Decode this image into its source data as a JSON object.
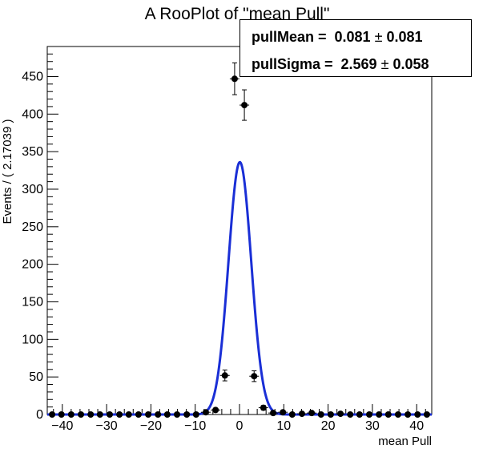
{
  "chart_data": {
    "type": "scatter",
    "title": "A RooPlot of \"mean Pull\"",
    "xlabel": "mean Pull",
    "ylabel": "Events / ( 2.17039 )",
    "xlim": [
      -43.4,
      43.4
    ],
    "ylim": [
      0,
      490
    ],
    "xticks": [
      -40,
      -30,
      -20,
      -10,
      0,
      10,
      20,
      30,
      40
    ],
    "xtick_labels": [
      "−40",
      "−30",
      "−20",
      "−10",
      "0",
      "10",
      "20",
      "30",
      "40"
    ],
    "yticks": [
      0,
      50,
      100,
      150,
      200,
      250,
      300,
      350,
      400,
      450
    ],
    "grid": false,
    "bin_width": 2.17039,
    "series": [
      {
        "style": "points-with-errors",
        "color": "#000000",
        "x": [
          -42.3,
          -40.2,
          -38.0,
          -35.8,
          -33.6,
          -31.5,
          -29.3,
          -27.1,
          -25.0,
          -22.8,
          -20.6,
          -18.4,
          -16.3,
          -14.1,
          -11.9,
          -9.8,
          -7.6,
          -5.4,
          -3.3,
          -1.1,
          1.1,
          3.3,
          5.4,
          7.6,
          9.8,
          11.9,
          14.1,
          16.3,
          18.4,
          20.6,
          22.8,
          25.0,
          27.1,
          29.3,
          31.5,
          33.6,
          35.8,
          38.0,
          40.2,
          42.3
        ],
        "y": [
          0,
          0,
          0,
          0,
          0,
          0,
          0,
          0,
          0,
          0,
          0,
          0,
          0,
          0,
          0,
          0,
          3,
          6,
          52,
          447,
          412,
          51,
          9,
          2,
          3,
          0,
          1,
          2,
          0,
          0,
          1,
          0,
          0,
          0,
          0,
          0,
          0,
          0,
          0,
          0
        ]
      },
      {
        "style": "line",
        "color": "#1a2fd6",
        "model": "gaussian",
        "mean": 0.081,
        "sigma": 2.569,
        "peak": 336
      }
    ],
    "legend": {
      "placement": "top-right",
      "rows": [
        {
          "name": "pullMean =  0.081",
          "pm": "±",
          "err": "0.081"
        },
        {
          "name": "pullSigma =  2.569",
          "pm": "±",
          "err": "0.058"
        }
      ]
    }
  }
}
